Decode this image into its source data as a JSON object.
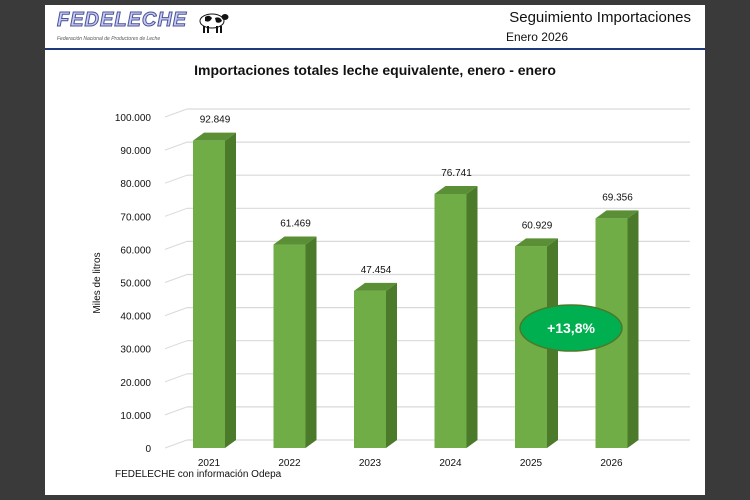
{
  "header": {
    "logo_text": "FEDELECHE",
    "logo_subtitle": "Federación Nacional de Productores de Leche",
    "title": "Seguimiento Importaciones",
    "subtitle": "Enero 2026"
  },
  "source": "FEDELECHE con información Odepa",
  "chart_data": {
    "type": "bar",
    "title": "Importaciones totales leche equivalente, enero - enero",
    "ylabel": "Miles de litros",
    "xlabel": "",
    "categories": [
      "2021",
      "2022",
      "2023",
      "2024",
      "2025",
      "2026"
    ],
    "values": [
      92849,
      61469,
      47454,
      76741,
      60929,
      69356
    ],
    "data_labels": [
      "92.849",
      "61.469",
      "47.454",
      "76.741",
      "60.929",
      "69.356"
    ],
    "ylim": [
      0,
      100000
    ],
    "yticks": [
      "0",
      "10.000",
      "20.000",
      "30.000",
      "40.000",
      "50.000",
      "60.000",
      "70.000",
      "80.000",
      "90.000",
      "100.000"
    ],
    "grid": true,
    "style": "3d",
    "colors": {
      "front": "#70ad47",
      "side": "#4a7a2a",
      "top": "#5a8f35",
      "badge": "#00b050"
    },
    "annotation": "+13,8%"
  }
}
